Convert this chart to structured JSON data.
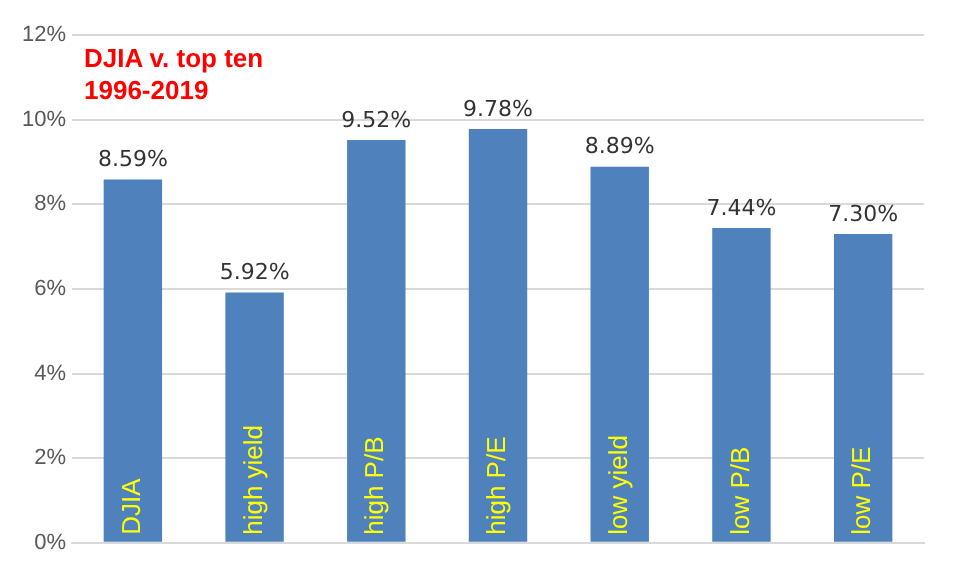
{
  "chart_data": {
    "type": "bar",
    "title": "DJIA v. top ten",
    "subtitle": "1996-2019",
    "categories": [
      "DJIA",
      "high yield",
      "high P/B",
      "high P/E",
      "low yield",
      "low P/B",
      "low P/E"
    ],
    "values": [
      8.59,
      5.92,
      9.52,
      9.78,
      8.89,
      7.44,
      7.3
    ],
    "value_labels": [
      "8.59%",
      "5.92%",
      "9.52%",
      "9.78%",
      "8.89%",
      "7.44%",
      "7.30%"
    ],
    "color": "#4f81bd",
    "ylim": [
      0,
      12
    ],
    "yticks": [
      {
        "value": 0,
        "label": "0%"
      },
      {
        "value": 2,
        "label": "2%"
      },
      {
        "value": 4,
        "label": "4%"
      },
      {
        "value": 6,
        "label": "6%"
      },
      {
        "value": 8,
        "label": "8%"
      },
      {
        "value": 10,
        "label": "10%"
      },
      {
        "value": 12,
        "label": "12%"
      }
    ],
    "grid": "y",
    "legend": false
  }
}
